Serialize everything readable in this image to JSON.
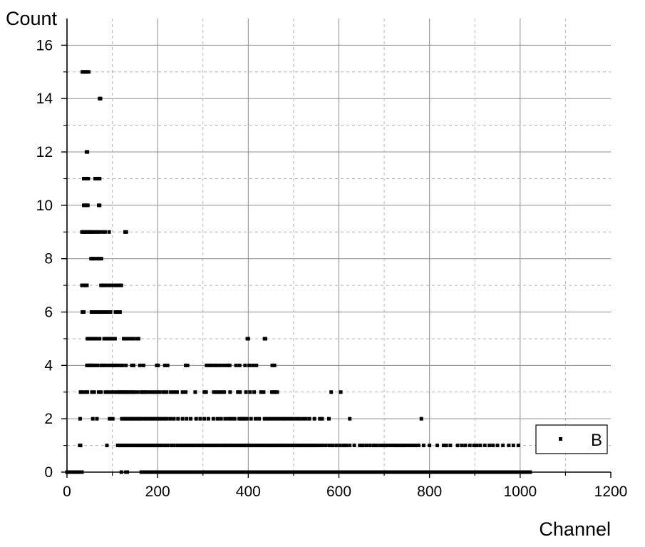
{
  "chart_data": {
    "type": "scatter",
    "title": "",
    "xlabel": "Channel",
    "ylabel": "Count",
    "xlim": [
      0,
      1200
    ],
    "ylim": [
      0,
      17
    ],
    "x_ticks": [
      0,
      200,
      400,
      600,
      800,
      1000,
      1200
    ],
    "y_ticks": [
      0,
      2,
      4,
      6,
      8,
      10,
      12,
      14,
      16
    ],
    "x_tick_labels": [
      "0",
      "200",
      "400",
      "600",
      "800",
      "1000",
      "1200"
    ],
    "y_tick_labels": [
      "0",
      "2",
      "4",
      "6",
      "8",
      "10",
      "12",
      "14",
      "16"
    ],
    "grid": true,
    "legend_position": "bottom-right",
    "series": [
      {
        "name": "B",
        "color": "#000000",
        "marker": "square",
        "rows": [
          {
            "y": 15,
            "x": [
              34,
              36,
              40,
              44,
              48
            ]
          },
          {
            "y": 14,
            "x": [
              72,
              74
            ]
          },
          {
            "y": 12,
            "x": [
              43,
              45
            ]
          },
          {
            "y": 11,
            "x": [
              37,
              40,
              44,
              47,
              62,
              66,
              70,
              72
            ]
          },
          {
            "y": 10,
            "x": [
              37,
              40,
              43,
              46,
              70,
              72
            ]
          },
          {
            "y": 9,
            "x": [
              33,
              36,
              38,
              41,
              44,
              47,
              50,
              53,
              55,
              58,
              63,
              67,
              71,
              78,
              84,
              93,
              128,
              131
            ]
          },
          {
            "y": 8,
            "x": [
              53,
              57,
              60,
              67,
              70,
              76
            ]
          },
          {
            "y": 7,
            "x": [
              33,
              36,
              39,
              42,
              44,
              75,
              78,
              82,
              86,
              92,
              97,
              103,
              108,
              112,
              116,
              120
            ]
          },
          {
            "y": 6,
            "x": [
              34,
              37,
              54,
              57,
              60,
              66,
              71,
              75,
              79,
              85,
              90,
              96,
              107,
              110,
              114,
              117
            ]
          },
          {
            "y": 5,
            "x": [
              45,
              48,
              52,
              55,
              58,
              62,
              67,
              72,
              82,
              86,
              89,
              93,
              97,
              101,
              106,
              125,
              129,
              134,
              140,
              146,
              154,
              158,
              398,
              400,
              436,
              438
            ]
          },
          {
            "y": 4,
            "x": [
              44,
              47,
              51,
              54,
              57,
              63,
              68,
              76,
              80,
              86,
              93,
              99,
              104,
              109,
              116,
              122,
              130,
              143,
              147,
              161,
              169,
              198,
              201,
              216,
              222,
              262,
              266,
              308,
              313,
              318,
              325,
              331,
              338,
              346,
              353,
              359,
              373,
              381,
              393,
              402,
              410,
              418,
              453,
              458
            ]
          },
          {
            "y": 3,
            "x": [
              30,
              33,
              40,
              45,
              55,
              60,
              70,
              75,
              85,
              91,
              98,
              104,
              110,
              114,
              118,
              122,
              126,
              130,
              134,
              139,
              144,
              148,
              155,
              163,
              167,
              171,
              176,
              182,
              188,
              193,
              199,
              205,
              213,
              220,
              229,
              236,
              243,
              255,
              262,
              283,
              303,
              307,
              324,
              330,
              335,
              341,
              347,
              360,
              377,
              382,
              395,
              404,
              413,
              428,
              434,
              452,
              456,
              460,
              464,
              583,
              604
            ]
          },
          {
            "y": 2,
            "x": [
              29,
              57,
              66,
              94,
              101,
              121,
              126,
              130,
              134,
              139,
              143,
              147,
              152,
              156,
              160,
              164,
              169,
              174,
              179,
              184,
              188,
              193,
              198,
              203,
              209,
              215,
              220,
              228,
              236,
              245,
              255,
              264,
              273,
              285,
              294,
              303,
              312,
              323,
              332,
              340,
              349,
              357,
              363,
              370,
              380,
              384,
              388,
              392,
              397,
              406,
              416,
              424,
              436,
              441,
              447,
              453,
              459,
              465,
              472,
              478,
              484,
              491,
              497,
              505,
              512,
              520,
              527,
              535,
              546,
              558,
              563,
              578,
              624,
              782
            ]
          },
          {
            "y": 1,
            "x": [
              28,
              30,
              88,
              112,
              117,
              122,
              127,
              131,
              136,
              140,
              145,
              149,
              154,
              158,
              162,
              167,
              171,
              176,
              180,
              185,
              190,
              194,
              199,
              204,
              209,
              216,
              222,
              230,
              236,
              244,
              250,
              255,
              260,
              266,
              271,
              276,
              281,
              287,
              292,
              297,
              302,
              307,
              312,
              318,
              323,
              328,
              333,
              339,
              344,
              349,
              354,
              360,
              365,
              370,
              375,
              381,
              386,
              391,
              396,
              402,
              407,
              412,
              417,
              423,
              428,
              433,
              438,
              444,
              449,
              454,
              459,
              465,
              470,
              475,
              480,
              486,
              491,
              496,
              501,
              507,
              512,
              517,
              522,
              528,
              533,
              538,
              543,
              549,
              556,
              563,
              571,
              579,
              586,
              594,
              602,
              610,
              616,
              624,
              634,
              646,
              652,
              660,
              668,
              676,
              682,
              690,
              697,
              703,
              709,
              716,
              723,
              729,
              736,
              742,
              748,
              755,
              762,
              769,
              776,
              787,
              800,
              817,
              831,
              837,
              846,
              862,
              871,
              879,
              889,
              898,
              904,
              912,
              922,
              932,
              940,
              950,
              962,
              975,
              985,
              996
            ]
          },
          {
            "y": 0,
            "x": [
              0,
              3,
              6,
              9,
              12,
              15,
              18,
              21,
              24,
              27,
              30,
              33,
              120,
              130,
              133,
              164,
              168,
              172,
              176,
              180,
              184,
              188,
              192,
              196,
              200,
              206,
              212,
              218,
              224,
              230,
              236,
              242,
              248,
              254,
              260,
              266,
              272,
              278,
              284,
              290,
              296,
              302,
              308,
              314,
              320,
              326,
              332,
              338,
              344,
              350,
              356,
              362,
              368,
              374,
              380,
              386,
              392,
              398,
              404,
              410,
              416,
              422,
              428,
              434,
              440,
              446,
              452,
              458,
              464,
              470,
              476,
              482,
              488,
              494,
              500,
              506,
              512,
              518,
              524,
              530,
              536,
              542,
              548,
              554,
              560,
              566,
              572,
              578,
              584,
              590,
              596,
              602,
              608,
              614,
              620,
              626,
              632,
              638,
              644,
              650,
              656,
              662,
              668,
              674,
              680,
              686,
              692,
              698,
              704,
              710,
              716,
              722,
              728,
              734,
              740,
              746,
              752,
              758,
              764,
              770,
              776,
              782,
              788,
              794,
              800,
              806,
              812,
              818,
              824,
              830,
              836,
              842,
              848,
              854,
              860,
              866,
              872,
              878,
              884,
              890,
              896,
              902,
              908,
              914,
              920,
              926,
              932,
              938,
              944,
              950,
              956,
              962,
              968,
              974,
              980,
              986,
              992,
              998,
              1004,
              1010,
              1016,
              1022
            ]
          }
        ]
      }
    ]
  }
}
